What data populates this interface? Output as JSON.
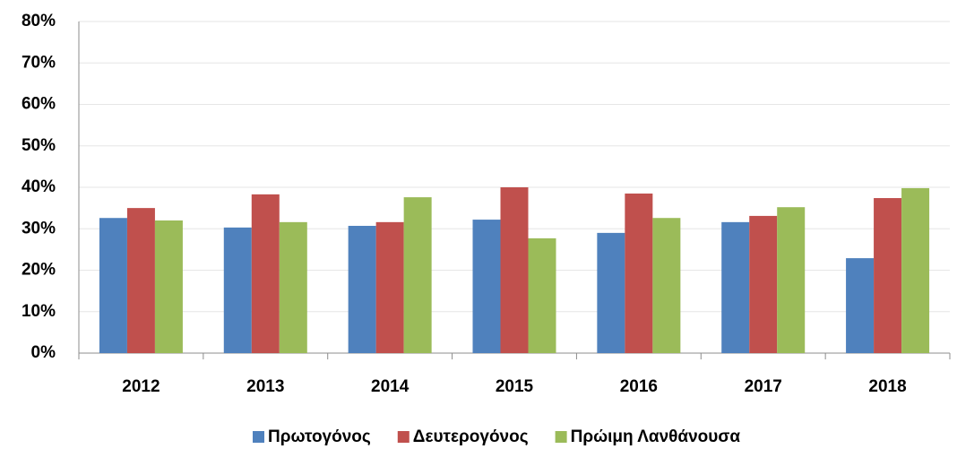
{
  "chart_data": {
    "type": "bar",
    "categories": [
      "2012",
      "2013",
      "2014",
      "2015",
      "2016",
      "2017",
      "2018"
    ],
    "series": [
      {
        "name": "Πρωτογόνος",
        "color": "#4f81bd",
        "values": [
          32.6,
          30.3,
          30.7,
          32.2,
          29.0,
          31.6,
          22.9
        ]
      },
      {
        "name": "Δευτερογόνος",
        "color": "#c0504d",
        "values": [
          35.0,
          38.3,
          31.6,
          40.0,
          38.5,
          33.1,
          37.4
        ]
      },
      {
        "name": "Πρώιμη Λανθάνουσα",
        "color": "#9bbb59",
        "values": [
          32.0,
          31.6,
          37.6,
          27.7,
          32.6,
          35.2,
          39.8
        ]
      }
    ],
    "ylim": [
      0,
      80
    ],
    "yticks": [
      {
        "value": 0,
        "label": "0%"
      },
      {
        "value": 10,
        "label": "10%"
      },
      {
        "value": 20,
        "label": "20%"
      },
      {
        "value": 30,
        "label": "30%"
      },
      {
        "value": 40,
        "label": "40%"
      },
      {
        "value": 50,
        "label": "50%"
      },
      {
        "value": 60,
        "label": "60%"
      },
      {
        "value": 70,
        "label": "70%"
      },
      {
        "value": 80,
        "label": "80%"
      }
    ],
    "grid": true,
    "legend": "bottom"
  }
}
